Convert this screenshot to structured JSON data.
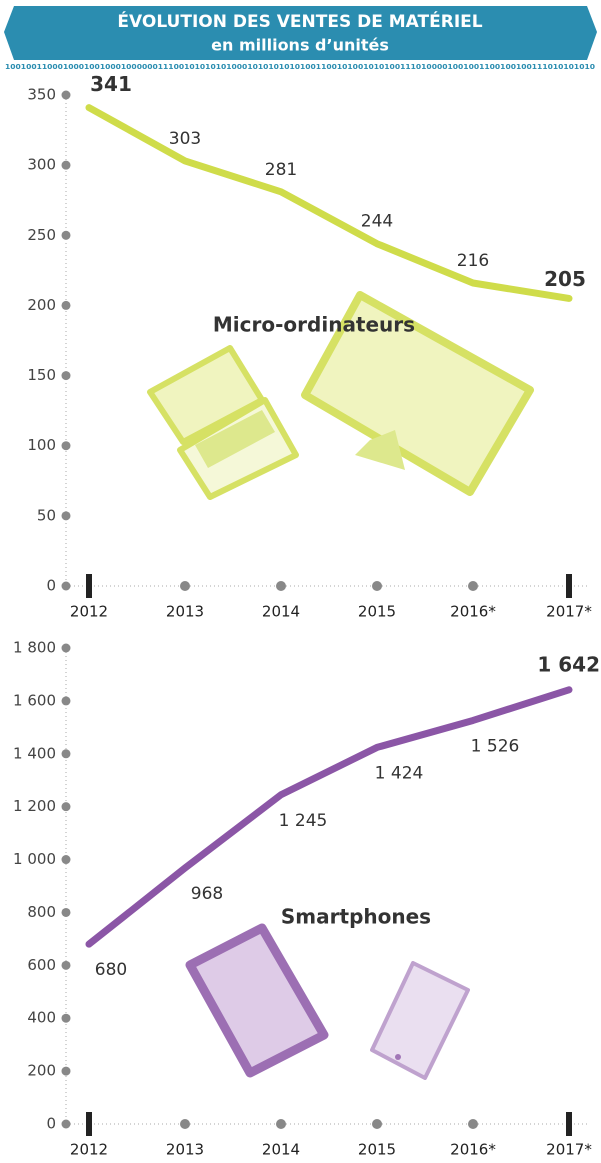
{
  "header": {
    "title": "ÉVOLUTION DES VENTES DE MATÉRIEL",
    "subtitle": "en millions d’unités",
    "binary": "1001001100010001001000100000011100101010101000101010101010011001010010101001110100001001001100100100111010101010"
  },
  "chart_data": [
    {
      "type": "line",
      "series": [
        {
          "name": "Micro-ordinateurs",
          "color": "#cfdc4a",
          "values": [
            341,
            303,
            281,
            244,
            216,
            205
          ]
        }
      ],
      "categories": [
        "2012",
        "2013",
        "2014",
        "2015",
        "2016*",
        "2017*"
      ],
      "ylim": [
        0,
        350
      ],
      "yticks": [
        0,
        50,
        100,
        150,
        200,
        250,
        300,
        350
      ]
    },
    {
      "type": "line",
      "series": [
        {
          "name": "Smartphones",
          "color": "#8b56a6",
          "values": [
            680,
            968,
            1245,
            1424,
            1526,
            1642
          ],
          "value_labels": [
            "680",
            "968",
            "1 245",
            "1 424",
            "1 526",
            "1 642"
          ]
        }
      ],
      "categories": [
        "2012",
        "2013",
        "2014",
        "2015",
        "2016*",
        "2017*"
      ],
      "ylim": [
        0,
        1800
      ],
      "yticks": [
        0,
        200,
        400,
        600,
        800,
        {
          "value": 1000,
          "label": "1 000"
        },
        {
          "value": 1200,
          "label": "1 200"
        },
        {
          "value": 1400,
          "label": "1 400"
        },
        {
          "value": 1600,
          "label": "1 600"
        },
        {
          "value": 1800,
          "label": "1 800"
        }
      ]
    }
  ]
}
